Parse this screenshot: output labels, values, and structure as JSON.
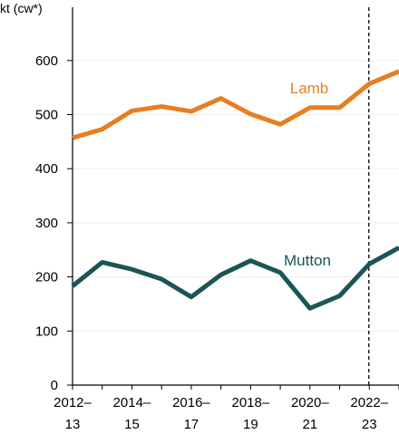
{
  "chart_data": {
    "type": "line",
    "ylabel": "kt (cw*)",
    "ylim": [
      0,
      700
    ],
    "yticks": [
      0,
      100,
      200,
      300,
      400,
      500,
      600
    ],
    "grid": true,
    "x": [
      "2012–13",
      "2013–14",
      "2014–15",
      "2015–16",
      "2016–17",
      "2017–18",
      "2018–19",
      "2019–20",
      "2020–21",
      "2021–22",
      "2022–23",
      "2023–24"
    ],
    "xtick_labels": [
      {
        "line1": "2012–",
        "line2": "13"
      },
      {
        "line1": "2014–",
        "line2": "15"
      },
      {
        "line1": "2016–",
        "line2": "17"
      },
      {
        "line1": "2018–",
        "line2": "19"
      },
      {
        "line1": "2020–",
        "line2": "21"
      },
      {
        "line1": "2022–",
        "line2": "23"
      }
    ],
    "xtick_indices": [
      0,
      2,
      4,
      6,
      8,
      10
    ],
    "marker_line_index": 10,
    "series": [
      {
        "name": "Lamb",
        "color": "#E67E22",
        "values": [
          457,
          473,
          507,
          515,
          506,
          530,
          501,
          482,
          513,
          513,
          557,
          580
        ]
      },
      {
        "name": "Mutton",
        "color": "#1B5555",
        "values": [
          183,
          227,
          214,
          196,
          163,
          204,
          230,
          208,
          142,
          165,
          224,
          254
        ]
      }
    ]
  }
}
